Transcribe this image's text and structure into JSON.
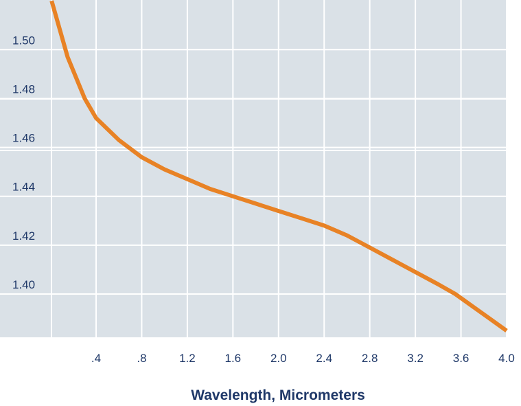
{
  "chart_data": {
    "type": "line",
    "xlabel": "Wavelength, Micrometers",
    "ylabel": "",
    "x_ticks": [
      {
        "value": 0.4,
        "label": ".4"
      },
      {
        "value": 0.8,
        "label": ".8"
      },
      {
        "value": 1.2,
        "label": "1.2"
      },
      {
        "value": 1.6,
        "label": "1.6"
      },
      {
        "value": 2.0,
        "label": "2.0"
      },
      {
        "value": 2.4,
        "label": "2.4"
      },
      {
        "value": 2.8,
        "label": "2.8"
      },
      {
        "value": 3.2,
        "label": "3.2"
      },
      {
        "value": 3.6,
        "label": "3.6"
      },
      {
        "value": 4.0,
        "label": "4.0"
      }
    ],
    "y_ticks": [
      {
        "value": 1.4,
        "label": "1.40"
      },
      {
        "value": 1.42,
        "label": "1.42"
      },
      {
        "value": 1.44,
        "label": "1.44"
      },
      {
        "value": 1.46,
        "label": "1.46"
      },
      {
        "value": 1.48,
        "label": "1.48"
      },
      {
        "value": 1.5,
        "label": "1.50"
      }
    ],
    "grid": true,
    "series": [
      {
        "color": "#e88225",
        "x": [
          0.01,
          0.15,
          0.3,
          0.4,
          0.6,
          0.8,
          1.0,
          1.2,
          1.4,
          1.6,
          1.8,
          2.0,
          2.2,
          2.4,
          2.6,
          2.8,
          3.0,
          3.2,
          3.4,
          3.55,
          3.7,
          3.85,
          4.0
        ],
        "y": [
          1.52,
          1.497,
          1.48,
          1.472,
          1.463,
          1.456,
          1.451,
          1.447,
          1.443,
          1.44,
          1.437,
          1.434,
          1.431,
          1.428,
          1.424,
          1.419,
          1.414,
          1.409,
          1.404,
          1.4,
          1.395,
          1.39,
          1.385
        ]
      }
    ]
  }
}
